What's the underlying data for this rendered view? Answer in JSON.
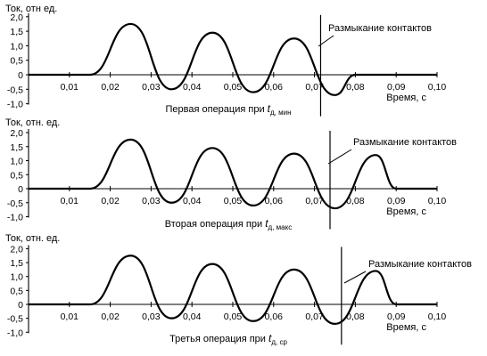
{
  "chart_data": [
    {
      "type": "line",
      "ylabel": "Ток, отн  ед.",
      "xlabel": "Время, с",
      "caption": {
        "text": "Первая операция при ",
        "var": "t",
        "sub": "д, мин"
      },
      "annotation": "Размыкание контактов",
      "contact_opening_time": 0.0715,
      "xlim": [
        0,
        0.1
      ],
      "ylim": [
        -1.0,
        2.0
      ],
      "xticks": [
        0.01,
        0.02,
        0.03,
        0.04,
        0.05,
        0.06,
        0.07,
        0.08,
        0.09,
        0.1
      ],
      "xtick_labels": [
        "0,01",
        "0,02",
        "0,03",
        "0,04",
        "0,05",
        "0,06",
        "0,07",
        "0,08",
        "0,09",
        "0,10"
      ],
      "yticks": [
        2.0,
        1.5,
        1.0,
        0.5,
        0,
        -0.5,
        -1.0
      ],
      "ytick_labels": [
        "2,0",
        "1,5",
        "1,0",
        "0,5",
        "0",
        "-0,5",
        "-1,0"
      ],
      "series": [
        {
          "x": [
            0,
            0.015,
            0.025,
            0.035,
            0.045,
            0.055,
            0.065,
            0.075,
            0.08,
            0.1
          ],
          "y": [
            0,
            0,
            1.75,
            -0.5,
            1.45,
            -0.6,
            1.25,
            -0.7,
            0,
            0
          ]
        }
      ]
    },
    {
      "type": "line",
      "ylabel": "Ток, отн. ед.",
      "xlabel": "Время, с",
      "caption": {
        "text": "Вторая операция при ",
        "var": "t",
        "sub": "д, макс"
      },
      "annotation": "Размыкание контактов",
      "contact_opening_time": 0.0738,
      "xlim": [
        0,
        0.1
      ],
      "ylim": [
        -1.0,
        2.0
      ],
      "xticks": [
        0.01,
        0.02,
        0.03,
        0.04,
        0.05,
        0.06,
        0.07,
        0.08,
        0.09,
        0.1
      ],
      "xtick_labels": [
        "0,01",
        "0,02",
        "0,03",
        "0,04",
        "0,05",
        "0,06",
        "0,07",
        "0,08",
        "0,09",
        "0,10"
      ],
      "yticks": [
        2.0,
        1.5,
        1.0,
        0.5,
        0,
        -0.5,
        -1.0
      ],
      "ytick_labels": [
        "2,0",
        "1,5",
        "1,0",
        "0,5",
        "0",
        "-0,5",
        "-1,0"
      ],
      "series": [
        {
          "x": [
            0,
            0.015,
            0.025,
            0.035,
            0.045,
            0.055,
            0.065,
            0.075,
            0.085,
            0.09,
            0.1
          ],
          "y": [
            0,
            0,
            1.75,
            -0.5,
            1.45,
            -0.6,
            1.25,
            -0.7,
            1.2,
            0,
            0
          ]
        }
      ]
    },
    {
      "type": "line",
      "ylabel": "Ток, отн. ед.",
      "xlabel": "Время, с",
      "caption": {
        "text": "Третья операция при ",
        "var": "t",
        "sub": "д, ср"
      },
      "annotation": "Размыкание контактов",
      "contact_opening_time": 0.0766,
      "xlim": [
        0,
        0.1
      ],
      "ylim": [
        -1.0,
        2.0
      ],
      "xticks": [
        0.01,
        0.02,
        0.03,
        0.04,
        0.05,
        0.06,
        0.07,
        0.08,
        0.09,
        0.1
      ],
      "xtick_labels": [
        "0,01",
        "0,02",
        "0,03",
        "0,04",
        "0,05",
        "0,06",
        "0,07",
        "0,08",
        "0,09",
        "0,10"
      ],
      "yticks": [
        2.0,
        1.5,
        1.0,
        0.5,
        0,
        -0.5,
        -1.0
      ],
      "ytick_labels": [
        "2,0",
        "1,5",
        "1,0",
        "0,5",
        "0",
        "-0,5",
        "-1,0"
      ],
      "series": [
        {
          "x": [
            0,
            0.015,
            0.025,
            0.035,
            0.045,
            0.055,
            0.065,
            0.075,
            0.085,
            0.09,
            0.1
          ],
          "y": [
            0,
            0,
            1.75,
            -0.5,
            1.45,
            -0.6,
            1.25,
            -0.7,
            1.2,
            0,
            0
          ]
        }
      ]
    }
  ]
}
